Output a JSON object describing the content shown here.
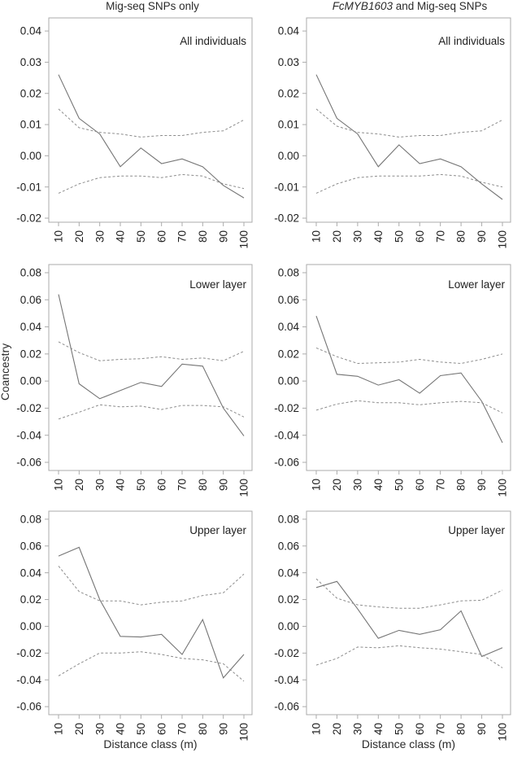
{
  "figure": {
    "columns": [
      {
        "title_italic": "",
        "title_rest": "Mig-seq SNPs only"
      },
      {
        "title_italic": "FcMYB1603",
        "title_rest": " and Mig-seq SNPs"
      }
    ],
    "ylabel": "Coancestry",
    "xlabel": "Distance class (m)"
  },
  "style": {
    "observed_color": "#757575",
    "ci_color": "#8c8c8c",
    "box_color": "#ababab",
    "text_color": "#1f1f1f"
  },
  "chart_data": [
    {
      "type": "line",
      "id": "all-individuals-migseq",
      "row": 0,
      "col": 0,
      "label": "All individuals",
      "x": [
        10,
        20,
        30,
        40,
        50,
        60,
        70,
        80,
        90,
        100
      ],
      "xticks": [
        10,
        20,
        30,
        40,
        50,
        60,
        70,
        80,
        90,
        100
      ],
      "yticks": [
        0.04,
        0.03,
        0.02,
        0.01,
        0.0,
        -0.01,
        -0.02
      ],
      "ylim": [
        -0.0213,
        0.0442
      ],
      "grid": false,
      "series": [
        {
          "name": "observed",
          "style": "solid",
          "values": [
            0.026,
            0.012,
            0.007,
            -0.0035,
            0.0025,
            -0.0025,
            -0.001,
            -0.0035,
            -0.0095,
            -0.0135
          ]
        },
        {
          "name": "upper-ci",
          "style": "dashed",
          "values": [
            0.015,
            0.009,
            0.0075,
            0.007,
            0.006,
            0.0065,
            0.0065,
            0.0075,
            0.008,
            0.0115
          ]
        },
        {
          "name": "lower-ci",
          "style": "dashed",
          "values": [
            -0.012,
            -0.009,
            -0.007,
            -0.0065,
            -0.0065,
            -0.007,
            -0.006,
            -0.0065,
            -0.009,
            -0.0105
          ]
        }
      ]
    },
    {
      "type": "line",
      "id": "all-individuals-fcmyb",
      "row": 0,
      "col": 1,
      "label": "All individuals",
      "x": [
        10,
        20,
        30,
        40,
        50,
        60,
        70,
        80,
        90,
        100
      ],
      "xticks": [
        10,
        20,
        30,
        40,
        50,
        60,
        70,
        80,
        90,
        100
      ],
      "yticks": [
        0.04,
        0.03,
        0.02,
        0.01,
        0.0,
        -0.01,
        -0.02
      ],
      "ylim": [
        -0.0213,
        0.0442
      ],
      "grid": false,
      "series": [
        {
          "name": "observed",
          "style": "solid",
          "values": [
            0.026,
            0.012,
            0.007,
            -0.0035,
            0.0035,
            -0.0025,
            -0.001,
            -0.0035,
            -0.009,
            -0.014
          ]
        },
        {
          "name": "upper-ci",
          "style": "dashed",
          "values": [
            0.015,
            0.0095,
            0.0075,
            0.007,
            0.006,
            0.0065,
            0.0065,
            0.0075,
            0.008,
            0.0115
          ]
        },
        {
          "name": "lower-ci",
          "style": "dashed",
          "values": [
            -0.012,
            -0.009,
            -0.007,
            -0.0065,
            -0.0065,
            -0.0065,
            -0.006,
            -0.0065,
            -0.0085,
            -0.01
          ]
        }
      ]
    },
    {
      "type": "line",
      "id": "lower-layer-migseq",
      "row": 1,
      "col": 0,
      "label": "Lower layer",
      "x": [
        10,
        20,
        30,
        40,
        50,
        60,
        70,
        80,
        90,
        100
      ],
      "xticks": [
        10,
        20,
        30,
        40,
        50,
        60,
        70,
        80,
        90,
        100
      ],
      "yticks": [
        0.08,
        0.06,
        0.04,
        0.02,
        0.0,
        -0.02,
        -0.04,
        -0.06
      ],
      "ylim": [
        -0.066,
        0.086
      ],
      "grid": false,
      "series": [
        {
          "name": "observed",
          "style": "solid",
          "values": [
            0.064,
            -0.002,
            -0.013,
            -0.007,
            -0.001,
            -0.004,
            0.0125,
            0.011,
            -0.02,
            -0.0405
          ]
        },
        {
          "name": "upper-ci",
          "style": "dashed",
          "values": [
            0.029,
            0.021,
            0.015,
            0.016,
            0.0165,
            0.018,
            0.016,
            0.017,
            0.015,
            0.022
          ]
        },
        {
          "name": "lower-ci",
          "style": "dashed",
          "values": [
            -0.028,
            -0.023,
            -0.0175,
            -0.019,
            -0.0185,
            -0.021,
            -0.018,
            -0.018,
            -0.019,
            -0.0265
          ]
        }
      ]
    },
    {
      "type": "line",
      "id": "lower-layer-fcmyb",
      "row": 1,
      "col": 1,
      "label": "Lower layer",
      "x": [
        10,
        20,
        30,
        40,
        50,
        60,
        70,
        80,
        90,
        100
      ],
      "xticks": [
        10,
        20,
        30,
        40,
        50,
        60,
        70,
        80,
        90,
        100
      ],
      "yticks": [
        0.08,
        0.06,
        0.04,
        0.02,
        0.0,
        -0.02,
        -0.04,
        -0.06
      ],
      "ylim": [
        -0.066,
        0.086
      ],
      "grid": false,
      "series": [
        {
          "name": "observed",
          "style": "solid",
          "values": [
            0.048,
            0.005,
            0.0035,
            -0.003,
            0.001,
            -0.009,
            0.004,
            0.006,
            -0.015,
            -0.0455
          ]
        },
        {
          "name": "upper-ci",
          "style": "dashed",
          "values": [
            0.0245,
            0.018,
            0.013,
            0.0135,
            0.014,
            0.016,
            0.014,
            0.013,
            0.016,
            0.02
          ]
        },
        {
          "name": "lower-ci",
          "style": "dashed",
          "values": [
            -0.0215,
            -0.017,
            -0.0145,
            -0.016,
            -0.016,
            -0.0175,
            -0.016,
            -0.015,
            -0.016,
            -0.0235
          ]
        }
      ]
    },
    {
      "type": "line",
      "id": "upper-layer-migseq",
      "row": 2,
      "col": 0,
      "label": "Upper layer",
      "x": [
        10,
        20,
        30,
        40,
        50,
        60,
        70,
        80,
        90,
        100
      ],
      "xticks": [
        10,
        20,
        30,
        40,
        50,
        60,
        70,
        80,
        90,
        100
      ],
      "yticks": [
        0.08,
        0.06,
        0.04,
        0.02,
        0.0,
        -0.02,
        -0.04,
        -0.06
      ],
      "ylim": [
        -0.066,
        0.086
      ],
      "grid": false,
      "series": [
        {
          "name": "observed",
          "style": "solid",
          "values": [
            0.0525,
            0.059,
            0.02,
            -0.0075,
            -0.008,
            -0.006,
            -0.021,
            0.005,
            -0.0385,
            -0.021
          ]
        },
        {
          "name": "upper-ci",
          "style": "dashed",
          "values": [
            0.045,
            0.026,
            0.019,
            0.019,
            0.016,
            0.018,
            0.019,
            0.023,
            0.025,
            0.039
          ]
        },
        {
          "name": "lower-ci",
          "style": "dashed",
          "values": [
            -0.037,
            -0.028,
            -0.02,
            -0.02,
            -0.019,
            -0.021,
            -0.024,
            -0.025,
            -0.028,
            -0.041
          ]
        }
      ]
    },
    {
      "type": "line",
      "id": "upper-layer-fcmyb",
      "row": 2,
      "col": 1,
      "label": "Upper layer",
      "x": [
        10,
        20,
        30,
        40,
        50,
        60,
        70,
        80,
        90,
        100
      ],
      "xticks": [
        10,
        20,
        30,
        40,
        50,
        60,
        70,
        80,
        90,
        100
      ],
      "yticks": [
        0.08,
        0.06,
        0.04,
        0.02,
        0.0,
        -0.02,
        -0.04,
        -0.06
      ],
      "ylim": [
        -0.066,
        0.086
      ],
      "grid": false,
      "series": [
        {
          "name": "observed",
          "style": "solid",
          "values": [
            0.029,
            0.0335,
            0.013,
            -0.009,
            -0.003,
            -0.006,
            -0.0025,
            0.0115,
            -0.0225,
            -0.016
          ]
        },
        {
          "name": "upper-ci",
          "style": "dashed",
          "values": [
            0.0355,
            0.021,
            0.016,
            0.0145,
            0.0135,
            0.0135,
            0.016,
            0.019,
            0.0195,
            0.027
          ]
        },
        {
          "name": "lower-ci",
          "style": "dashed",
          "values": [
            -0.029,
            -0.024,
            -0.0155,
            -0.016,
            -0.0145,
            -0.016,
            -0.017,
            -0.019,
            -0.021,
            -0.031
          ]
        }
      ]
    }
  ]
}
